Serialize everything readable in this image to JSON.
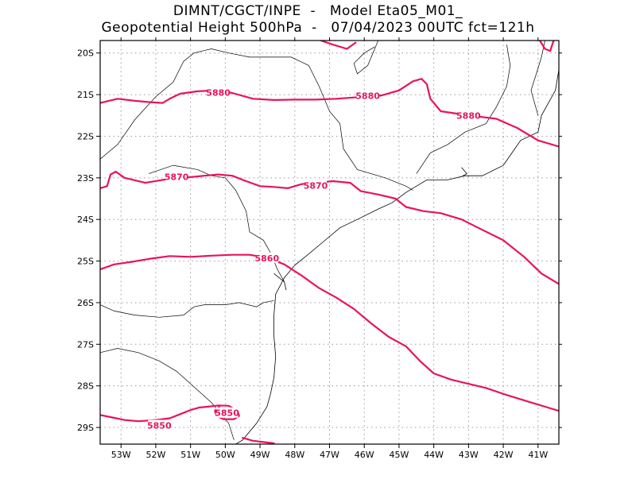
{
  "title": {
    "line1": "DIMNT/CGCT/INPE  -   Model Eta05_M01_",
    "line2": "Geopotential Height 500hPa  -   07/04/2023 00UTC fct=121h"
  },
  "axes": {
    "lon_range": [
      -53.6,
      -40.4
    ],
    "lat_range": [
      -29.4,
      -19.7
    ],
    "lon_ticks": [
      {
        "value": -53,
        "label": "53W"
      },
      {
        "value": -52,
        "label": "52W"
      },
      {
        "value": -51,
        "label": "51W"
      },
      {
        "value": -50,
        "label": "50W"
      },
      {
        "value": -49,
        "label": "49W"
      },
      {
        "value": -48,
        "label": "48W"
      },
      {
        "value": -47,
        "label": "47W"
      },
      {
        "value": -46,
        "label": "46W"
      },
      {
        "value": -45,
        "label": "45W"
      },
      {
        "value": -44,
        "label": "44W"
      },
      {
        "value": -43,
        "label": "43W"
      },
      {
        "value": -42,
        "label": "42W"
      },
      {
        "value": -41,
        "label": "41W"
      }
    ],
    "lat_ticks": [
      {
        "value": -20,
        "label": "20S"
      },
      {
        "value": -21,
        "label": "21S"
      },
      {
        "value": -22,
        "label": "22S"
      },
      {
        "value": -23,
        "label": "23S"
      },
      {
        "value": -24,
        "label": "24S"
      },
      {
        "value": -25,
        "label": "25S"
      },
      {
        "value": -26,
        "label": "26S"
      },
      {
        "value": -27,
        "label": "27S"
      },
      {
        "value": -28,
        "label": "28S"
      },
      {
        "value": -29,
        "label": "29S"
      }
    ],
    "grid": true
  },
  "contours": {
    "color": "#e8145a",
    "levels": [
      {
        "value": 5880,
        "labels": [
          {
            "text": "5880",
            "lon": -50.2,
            "lat": -20.95
          },
          {
            "text": "5880",
            "lon": -45.9,
            "lat": -21.03
          },
          {
            "text": "5880",
            "lon": -43.0,
            "lat": -21.5
          }
        ],
        "lines": [
          [
            [
              -53.6,
              -21.2
            ],
            [
              -53.1,
              -21.1
            ],
            [
              -52.6,
              -21.15
            ],
            [
              -52.2,
              -21.18
            ],
            [
              -51.8,
              -21.2
            ],
            [
              -51.6,
              -21.1
            ],
            [
              -51.3,
              -20.98
            ],
            [
              -50.8,
              -20.92
            ],
            [
              -50.3,
              -20.9
            ],
            [
              -49.8,
              -20.96
            ],
            [
              -49.2,
              -21.1
            ],
            [
              -48.6,
              -21.13
            ],
            [
              -48.0,
              -21.12
            ],
            [
              -47.4,
              -21.12
            ],
            [
              -46.8,
              -21.1
            ],
            [
              -46.3,
              -21.07
            ],
            [
              -45.9,
              -21.05
            ],
            [
              -45.5,
              -21.02
            ],
            [
              -45.0,
              -20.9
            ],
            [
              -44.6,
              -20.68
            ],
            [
              -44.35,
              -20.62
            ],
            [
              -44.2,
              -20.75
            ],
            [
              -44.1,
              -21.1
            ],
            [
              -43.8,
              -21.4
            ],
            [
              -43.4,
              -21.45
            ],
            [
              -42.8,
              -21.52
            ],
            [
              -42.2,
              -21.58
            ],
            [
              -41.6,
              -21.8
            ],
            [
              -41.0,
              -22.1
            ],
            [
              -40.4,
              -22.25
            ]
          ],
          [
            [
              -47.25,
              -19.7
            ],
            [
              -46.9,
              -19.8
            ],
            [
              -46.5,
              -19.9
            ],
            [
              -46.25,
              -19.75
            ]
          ],
          [
            [
              -40.95,
              -19.7
            ],
            [
              -40.8,
              -19.9
            ],
            [
              -40.65,
              -19.95
            ],
            [
              -40.55,
              -19.7
            ]
          ]
        ]
      },
      {
        "value": 5870,
        "labels": [
          {
            "text": "5870",
            "lon": -51.4,
            "lat": -22.97
          },
          {
            "text": "5870",
            "lon": -47.4,
            "lat": -23.18
          }
        ],
        "lines": [
          [
            [
              -53.6,
              -23.25
            ],
            [
              -53.4,
              -23.2
            ],
            [
              -53.3,
              -22.92
            ],
            [
              -53.15,
              -22.85
            ],
            [
              -52.9,
              -23.0
            ],
            [
              -52.3,
              -23.12
            ],
            [
              -51.8,
              -23.05
            ],
            [
              -51.2,
              -23.0
            ],
            [
              -50.6,
              -22.95
            ],
            [
              -50.2,
              -22.92
            ],
            [
              -49.8,
              -22.95
            ],
            [
              -49.4,
              -23.08
            ],
            [
              -49.0,
              -23.2
            ],
            [
              -48.6,
              -23.22
            ],
            [
              -48.2,
              -23.25
            ],
            [
              -47.8,
              -23.15
            ],
            [
              -47.4,
              -23.12
            ],
            [
              -46.9,
              -23.08
            ],
            [
              -46.4,
              -23.12
            ],
            [
              -46.1,
              -23.32
            ],
            [
              -45.6,
              -23.4
            ],
            [
              -45.1,
              -23.5
            ],
            [
              -44.8,
              -23.7
            ],
            [
              -44.3,
              -23.8
            ],
            [
              -43.8,
              -23.85
            ],
            [
              -43.2,
              -24.0
            ],
            [
              -42.6,
              -24.25
            ],
            [
              -42.0,
              -24.5
            ],
            [
              -41.4,
              -24.9
            ],
            [
              -40.9,
              -25.3
            ],
            [
              -40.4,
              -25.55
            ]
          ]
        ]
      },
      {
        "value": 5860,
        "labels": [
          {
            "text": "5860",
            "lon": -48.8,
            "lat": -24.93
          }
        ],
        "lines": [
          [
            [
              -53.6,
              -25.2
            ],
            [
              -53.2,
              -25.08
            ],
            [
              -52.7,
              -25.02
            ],
            [
              -52.2,
              -24.95
            ],
            [
              -51.6,
              -24.88
            ],
            [
              -51.0,
              -24.9
            ],
            [
              -50.4,
              -24.87
            ],
            [
              -49.8,
              -24.85
            ],
            [
              -49.3,
              -24.85
            ],
            [
              -48.8,
              -24.92
            ],
            [
              -48.3,
              -25.08
            ],
            [
              -47.8,
              -25.35
            ],
            [
              -47.3,
              -25.65
            ],
            [
              -46.8,
              -25.88
            ],
            [
              -46.3,
              -26.15
            ],
            [
              -45.8,
              -26.5
            ],
            [
              -45.3,
              -26.82
            ],
            [
              -44.8,
              -27.05
            ],
            [
              -44.4,
              -27.4
            ],
            [
              -44.0,
              -27.7
            ],
            [
              -43.5,
              -27.85
            ],
            [
              -43.0,
              -27.95
            ],
            [
              -42.5,
              -28.05
            ],
            [
              -41.9,
              -28.22
            ],
            [
              -41.2,
              -28.4
            ],
            [
              -40.4,
              -28.6
            ]
          ]
        ]
      },
      {
        "value": 5850,
        "labels": [
          {
            "text": "5850",
            "lon": -51.9,
            "lat": -28.95
          },
          {
            "text": "5850",
            "lon": -49.95,
            "lat": -28.65
          }
        ],
        "lines": [
          [
            [
              -53.6,
              -28.7
            ],
            [
              -53.3,
              -28.75
            ],
            [
              -52.9,
              -28.82
            ],
            [
              -52.5,
              -28.85
            ],
            [
              -52.0,
              -28.82
            ],
            [
              -51.6,
              -28.78
            ],
            [
              -51.3,
              -28.68
            ],
            [
              -51.0,
              -28.58
            ],
            [
              -50.75,
              -28.52
            ],
            [
              -50.5,
              -28.5
            ],
            [
              -50.2,
              -28.47
            ],
            [
              -49.9,
              -28.48
            ],
            [
              -49.65,
              -28.6
            ],
            [
              -49.6,
              -28.72
            ],
            [
              -49.75,
              -28.8
            ],
            [
              -50.05,
              -28.8
            ],
            [
              -50.25,
              -28.72
            ],
            [
              -50.3,
              -28.6
            ],
            [
              -50.15,
              -28.48
            ]
          ],
          [
            [
              -49.5,
              -29.25
            ],
            [
              -49.2,
              -29.32
            ],
            [
              -48.9,
              -29.35
            ],
            [
              -48.6,
              -29.38
            ]
          ]
        ]
      }
    ]
  },
  "coastline": {
    "color": "#000000",
    "lines": [
      [
        [
          -40.4,
          -20.4
        ],
        [
          -40.5,
          -20.9
        ],
        [
          -40.9,
          -21.5
        ],
        [
          -41.0,
          -21.9
        ],
        [
          -41.5,
          -22.1
        ],
        [
          -42.0,
          -22.7
        ],
        [
          -42.6,
          -22.95
        ],
        [
          -43.1,
          -22.95
        ],
        [
          -43.6,
          -23.05
        ],
        [
          -44.2,
          -23.05
        ],
        [
          -44.5,
          -23.2
        ],
        [
          -44.8,
          -23.35
        ],
        [
          -45.2,
          -23.6
        ],
        [
          -45.6,
          -23.75
        ],
        [
          -46.2,
          -24.0
        ],
        [
          -46.7,
          -24.2
        ],
        [
          -47.2,
          -24.55
        ],
        [
          -47.7,
          -24.9
        ],
        [
          -48.0,
          -25.1
        ],
        [
          -48.3,
          -25.4
        ],
        [
          -48.55,
          -25.8
        ],
        [
          -48.6,
          -26.3
        ],
        [
          -48.6,
          -26.8
        ],
        [
          -48.55,
          -27.3
        ],
        [
          -48.6,
          -27.8
        ],
        [
          -48.7,
          -28.2
        ],
        [
          -48.8,
          -28.5
        ],
        [
          -49.1,
          -28.9
        ],
        [
          -49.5,
          -29.3
        ],
        [
          -49.7,
          -29.4
        ]
      ],
      [
        [
          -43.2,
          -22.75
        ],
        [
          -43.05,
          -22.9
        ],
        [
          -43.2,
          -22.97
        ]
      ],
      [
        [
          -48.6,
          -25.3
        ],
        [
          -48.3,
          -25.5
        ],
        [
          -48.25,
          -25.7
        ]
      ]
    ]
  },
  "borders": {
    "color": "#000000",
    "lines": [
      [
        [
          -53.6,
          -22.55
        ],
        [
          -53.1,
          -22.2
        ],
        [
          -52.6,
          -21.6
        ],
        [
          -52.0,
          -21.05
        ],
        [
          -51.5,
          -20.7
        ],
        [
          -51.2,
          -20.2
        ],
        [
          -50.9,
          -20.0
        ],
        [
          -50.4,
          -19.9
        ],
        [
          -49.9,
          -20.0
        ],
        [
          -49.3,
          -20.1
        ],
        [
          -48.8,
          -20.1
        ],
        [
          -48.1,
          -20.1
        ],
        [
          -47.6,
          -20.3
        ],
        [
          -47.3,
          -20.8
        ],
        [
          -47.0,
          -21.4
        ],
        [
          -46.7,
          -21.7
        ],
        [
          -46.6,
          -22.3
        ],
        [
          -46.2,
          -22.8
        ],
        [
          -45.4,
          -23.0
        ],
        [
          -44.8,
          -23.2
        ],
        [
          -44.6,
          -23.3
        ]
      ],
      [
        [
          -52.2,
          -22.9
        ],
        [
          -51.5,
          -22.7
        ],
        [
          -50.8,
          -22.8
        ],
        [
          -50.4,
          -22.95
        ],
        [
          -50.0,
          -23.0
        ],
        [
          -49.7,
          -23.3
        ],
        [
          -49.4,
          -23.8
        ],
        [
          -49.3,
          -24.3
        ],
        [
          -48.9,
          -24.5
        ],
        [
          -48.7,
          -24.8
        ],
        [
          -48.5,
          -25.2
        ],
        [
          -48.3,
          -25.5
        ]
      ],
      [
        [
          -53.6,
          -26.05
        ],
        [
          -53.2,
          -26.2
        ],
        [
          -52.6,
          -26.3
        ],
        [
          -51.9,
          -26.35
        ],
        [
          -51.2,
          -26.3
        ],
        [
          -50.9,
          -26.1
        ],
        [
          -50.6,
          -26.05
        ],
        [
          -50.0,
          -26.05
        ],
        [
          -49.6,
          -26.0
        ],
        [
          -49.1,
          -26.1
        ],
        [
          -48.9,
          -26.0
        ],
        [
          -48.6,
          -25.95
        ]
      ],
      [
        [
          -53.6,
          -27.2
        ],
        [
          -53.1,
          -27.1
        ],
        [
          -52.5,
          -27.2
        ],
        [
          -51.9,
          -27.4
        ],
        [
          -51.4,
          -27.65
        ],
        [
          -50.8,
          -28.1
        ],
        [
          -50.4,
          -28.4
        ],
        [
          -49.9,
          -28.9
        ],
        [
          -49.75,
          -29.3
        ]
      ],
      [
        [
          -44.5,
          -22.9
        ],
        [
          -44.1,
          -22.4
        ],
        [
          -43.6,
          -22.2
        ],
        [
          -43.1,
          -21.9
        ],
        [
          -42.5,
          -21.7
        ],
        [
          -42.2,
          -21.3
        ],
        [
          -41.9,
          -20.8
        ],
        [
          -41.8,
          -20.3
        ],
        [
          -41.9,
          -19.8
        ]
      ],
      [
        [
          -41.0,
          -21.5
        ],
        [
          -41.2,
          -20.9
        ],
        [
          -41.05,
          -20.5
        ],
        [
          -40.9,
          -20.1
        ],
        [
          -40.8,
          -19.7
        ]
      ],
      [
        [
          -45.6,
          -19.7
        ],
        [
          -45.9,
          -20.3
        ],
        [
          -46.2,
          -20.5
        ],
        [
          -46.3,
          -20.25
        ],
        [
          -46.0,
          -20.0
        ],
        [
          -45.7,
          -19.85
        ]
      ]
    ]
  }
}
